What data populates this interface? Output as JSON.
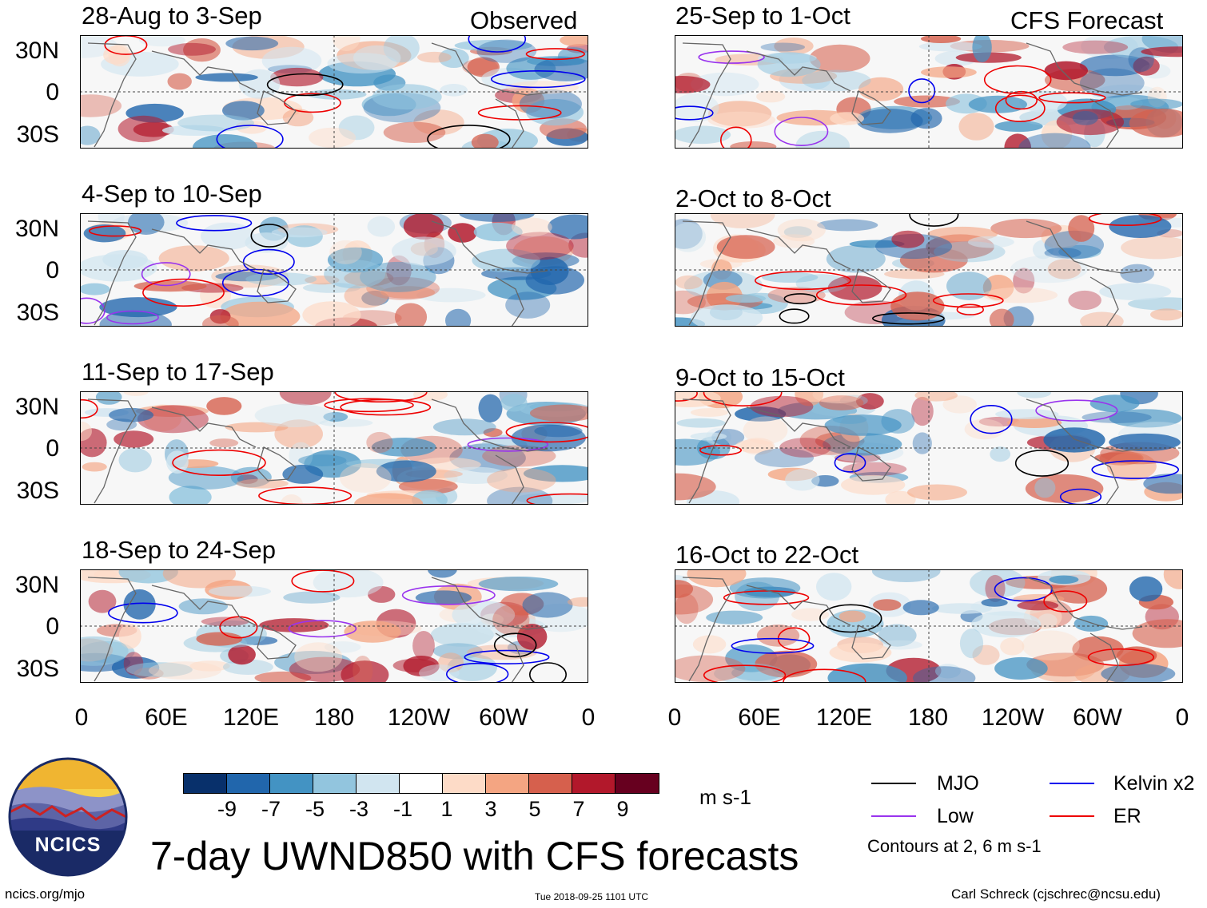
{
  "columns": {
    "observed": "Observed",
    "forecast": "CFS Forecast"
  },
  "panels": {
    "obs": [
      "28-Aug to 3-Sep",
      "4-Sep to 10-Sep",
      "11-Sep to 17-Sep",
      "18-Sep to 24-Sep"
    ],
    "fc": [
      "25-Sep to 1-Oct",
      "2-Oct to 8-Oct",
      "9-Oct to 15-Oct",
      "16-Oct to 22-Oct"
    ]
  },
  "lat_labels": [
    "30N",
    "0",
    "30S"
  ],
  "lon_labels": [
    "0",
    "60E",
    "120E",
    "180",
    "120W",
    "60W",
    "0"
  ],
  "colorbar": {
    "labels": [
      "-9",
      "-7",
      "-5",
      "-3",
      "-1",
      "1",
      "3",
      "5",
      "7",
      "9"
    ],
    "colors": [
      "#08306b",
      "#2166ac",
      "#4393c3",
      "#92c5de",
      "#d1e5f0",
      "#ffffff",
      "#fddbc7",
      "#f4a582",
      "#d6604d",
      "#b2182b",
      "#67001f"
    ],
    "units": "m s-1"
  },
  "title": "7-day UWND850 with CFS forecasts",
  "legend": {
    "items": [
      {
        "label": "MJO",
        "color": "#000000"
      },
      {
        "label": "Kelvin x2",
        "color": "#0000ee"
      },
      {
        "label": "Low",
        "color": "#9933ee"
      },
      {
        "label": "ER",
        "color": "#ee0000"
      }
    ],
    "note": "Contours at 2, 6 m s-1"
  },
  "logo_text": "NCICS",
  "footer": {
    "url": "ncics.org/mjo",
    "timestamp": "Tue 2018-09-25 1101 UTC",
    "credit": "Carl Schreck (cjschrec@ncsu.edu)"
  }
}
